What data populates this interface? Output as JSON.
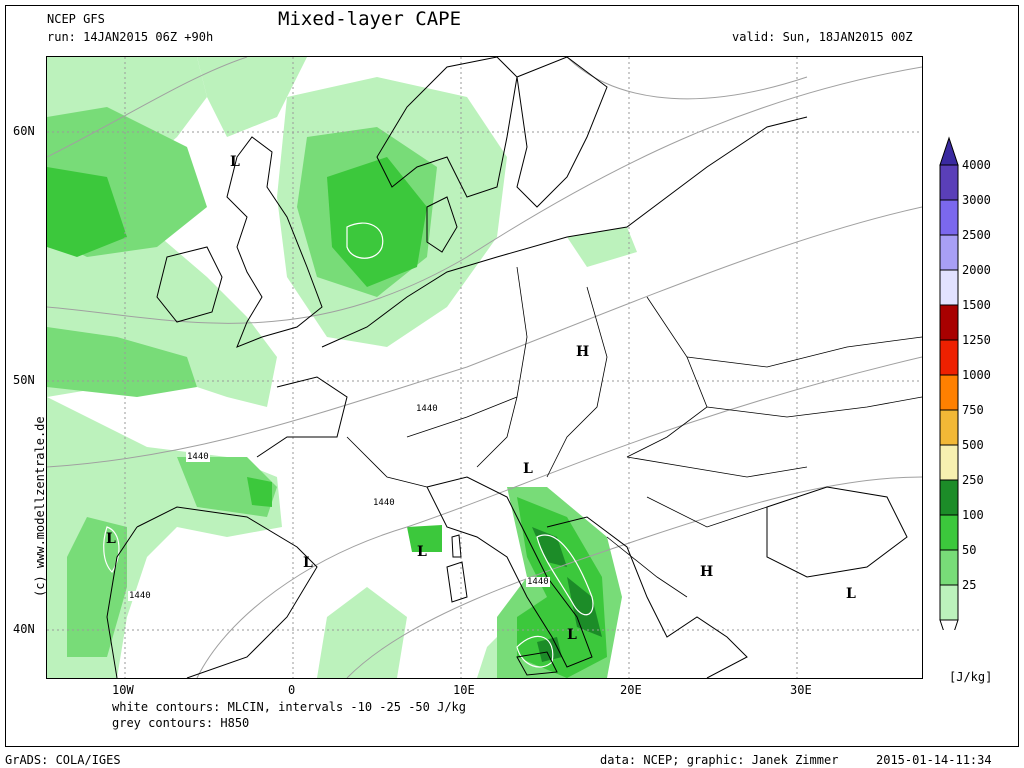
{
  "header": {
    "model": "NCEP GFS",
    "title": "Mixed-layer CAPE",
    "run": "run: 14JAN2015 06Z +90h",
    "valid": "valid: Sun, 18JAN2015 00Z"
  },
  "side_credit": "(c) www.modellzentrale.de",
  "lat_labels": [
    "60N",
    "50N",
    "40N"
  ],
  "lon_labels": [
    "10W",
    "0",
    "10E",
    "20E",
    "30E"
  ],
  "colorbar": {
    "unit": "[J/kg]",
    "levels": [
      {
        "label": "4000",
        "color": "#5a3fb8"
      },
      {
        "label": "3000",
        "color": "#7b68ee"
      },
      {
        "label": "2500",
        "color": "#a89ff5"
      },
      {
        "label": "2000",
        "color": "#e2e2ff"
      },
      {
        "label": "1500",
        "color": "#a80000"
      },
      {
        "label": "1250",
        "color": "#ee2000"
      },
      {
        "label": "1000",
        "color": "#ff8000"
      },
      {
        "label": "750",
        "color": "#f2b836"
      },
      {
        "label": "500",
        "color": "#f7f0b0"
      },
      {
        "label": "250",
        "color": "#1c8c28"
      },
      {
        "label": "100",
        "color": "#3cc83c"
      },
      {
        "label": "50",
        "color": "#78dc78"
      },
      {
        "label": "25",
        "color": "#bcf2bc"
      }
    ],
    "top_color": "#3a2aa0"
  },
  "pressure_centers": [
    "L",
    "L",
    "H",
    "L",
    "L",
    "L",
    "L",
    "H",
    "L",
    "L"
  ],
  "contour_labels": [
    "1440",
    "1440",
    "1440",
    "1440",
    "1440"
  ],
  "footer": {
    "contours_white": "white contours: MLCIN, intervals -10 -25 -50 J/kg",
    "contours_grey": "grey contours: H850",
    "grads": "GrADS: COLA/IGES",
    "credit": "data: NCEP; graphic: Janek Zimmer",
    "timestamp": "2015-01-14-11:34"
  }
}
